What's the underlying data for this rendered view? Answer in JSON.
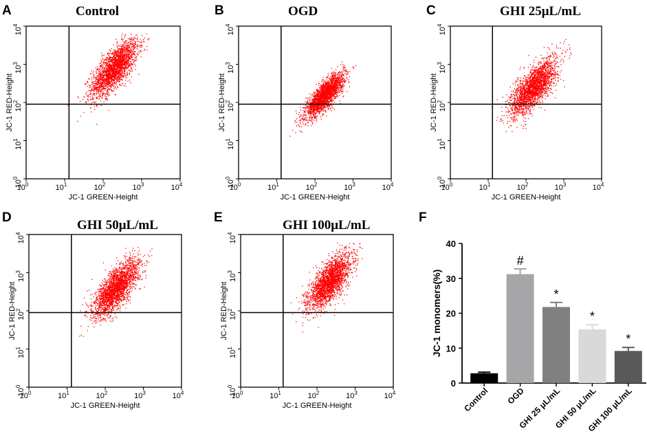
{
  "figure": {
    "panels": [
      {
        "letter": "A",
        "title": "Control",
        "xlabel": "JC-1 GREEN-Height",
        "ylabel": "JC-1 RED-Height",
        "ticks": [
          "10",
          "10",
          "10",
          "10",
          "10"
        ],
        "tick_exps": [
          "0",
          "1",
          "2",
          "3",
          "4"
        ]
      },
      {
        "letter": "B",
        "title": "OGD",
        "xlabel": "JC-1 GREEN-Height",
        "ylabel": "JC-1 RED-Height",
        "ticks": [
          "10",
          "10",
          "10",
          "10",
          "10"
        ],
        "tick_exps": [
          "0",
          "1",
          "2",
          "3",
          "4"
        ]
      },
      {
        "letter": "C",
        "title": "GHI 25μL/mL",
        "xlabel": "JC-1 GREEN-Height",
        "ylabel": "JC-1 RED-Height",
        "ticks": [
          "10",
          "10",
          "10",
          "10",
          "10"
        ],
        "tick_exps": [
          "0",
          "1",
          "2",
          "3",
          "4"
        ]
      },
      {
        "letter": "D",
        "title": "GHI 50μL/mL",
        "xlabel": "JC-1 GREEN-Height",
        "ylabel": "JC-1 RED-Height",
        "ticks": [
          "10",
          "10",
          "10",
          "10",
          "10"
        ],
        "tick_exps": [
          "0",
          "1",
          "2",
          "3",
          "4"
        ]
      },
      {
        "letter": "E",
        "title": "GHI 100μL/mL",
        "xlabel": "JC-1 GREEN-Height",
        "ylabel": "JC-1 RED-Height",
        "ticks": [
          "10",
          "10",
          "10",
          "10",
          "10"
        ],
        "tick_exps": [
          "0",
          "1",
          "2",
          "3",
          "4"
        ]
      }
    ],
    "bar_panel": {
      "letter": "F"
    }
  },
  "colors": {
    "dots": "#ff0000",
    "bars": [
      "#000000",
      "#a6a6a8",
      "#808080",
      "#d9d9d9",
      "#595959"
    ]
  },
  "chart_data": [
    {
      "type": "scatter",
      "panel": "A",
      "title": "Control",
      "xlabel": "JC-1 GREEN-Height",
      "ylabel": "JC-1 RED-Height",
      "xscale": "log",
      "yscale": "log",
      "xlim": [
        1,
        10000
      ],
      "ylim": [
        1,
        10000
      ],
      "gate": {
        "x": 13,
        "y": 90
      },
      "cluster": {
        "center_x": 200,
        "center_y": 800
      }
    },
    {
      "type": "scatter",
      "panel": "B",
      "title": "OGD",
      "xlabel": "JC-1 GREEN-Height",
      "ylabel": "JC-1 RED-Height",
      "xscale": "log",
      "yscale": "log",
      "xlim": [
        1,
        10000
      ],
      "ylim": [
        1,
        10000
      ],
      "gate": {
        "x": 13,
        "y": 90
      },
      "cluster": {
        "center_x": 180,
        "center_y": 150
      }
    },
    {
      "type": "scatter",
      "panel": "C",
      "title": "GHI 25μL/mL",
      "xlabel": "JC-1 GREEN-Height",
      "ylabel": "JC-1 RED-Height",
      "xscale": "log",
      "yscale": "log",
      "xlim": [
        1,
        10000
      ],
      "ylim": [
        1,
        10000
      ],
      "gate": {
        "x": 13,
        "y": 90
      },
      "cluster": {
        "center_x": 160,
        "center_y": 250
      }
    },
    {
      "type": "scatter",
      "panel": "D",
      "title": "GHI 50μL/mL",
      "xlabel": "JC-1 GREEN-Height",
      "ylabel": "JC-1 RED-Height",
      "xscale": "log",
      "yscale": "log",
      "xlim": [
        1,
        10000
      ],
      "ylim": [
        1,
        10000
      ],
      "gate": {
        "x": 13,
        "y": 90
      },
      "cluster": {
        "center_x": 200,
        "center_y": 400
      }
    },
    {
      "type": "scatter",
      "panel": "E",
      "title": "GHI 100μL/mL",
      "xlabel": "JC-1 GREEN-Height",
      "ylabel": "JC-1 RED-Height",
      "xscale": "log",
      "yscale": "log",
      "xlim": [
        1,
        10000
      ],
      "ylim": [
        1,
        10000
      ],
      "gate": {
        "x": 13,
        "y": 90
      },
      "cluster": {
        "center_x": 220,
        "center_y": 600
      }
    },
    {
      "type": "bar",
      "panel": "F",
      "title": "",
      "xlabel": "",
      "ylabel": "JC-1 monomers(%)",
      "ylim": [
        0,
        40
      ],
      "yticks": [
        0,
        10,
        20,
        30,
        40
      ],
      "categories": [
        "Control",
        "OGD",
        "GHI 25 μL/mL",
        "GHI 50 μL/mL",
        "GHI 100 μL/mL"
      ],
      "values": [
        2.8,
        31.2,
        21.8,
        15.4,
        9.2
      ],
      "errors": [
        0.3,
        1.5,
        1.3,
        1.3,
        1.0
      ],
      "annotations": [
        "",
        "#",
        "*",
        "*",
        "*"
      ]
    }
  ]
}
